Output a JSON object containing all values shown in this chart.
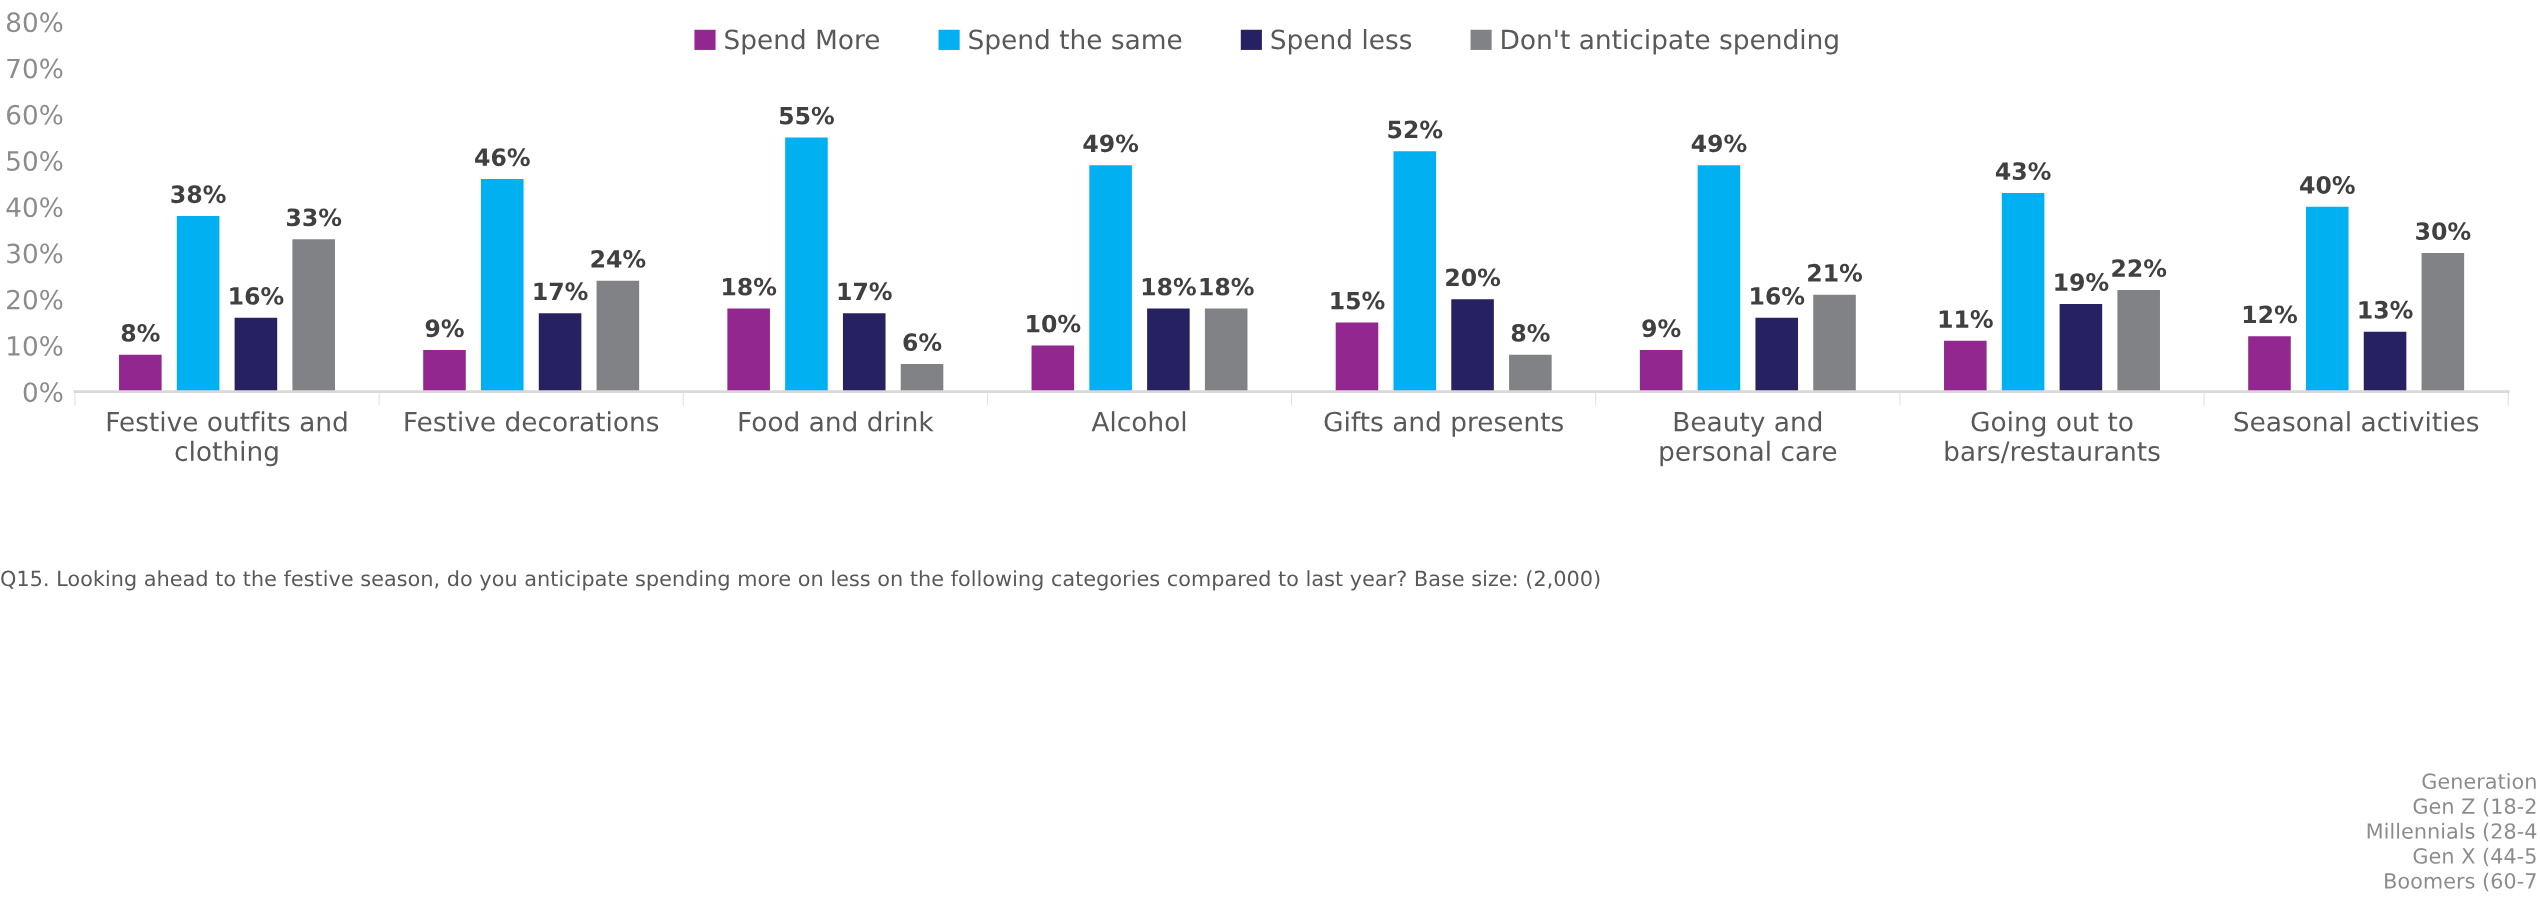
{
  "chart_data": {
    "type": "bar",
    "categories": [
      "Festive outfits and\nclothing",
      "Festive decorations",
      "Food and drink",
      "Alcohol",
      "Gifts and presents",
      "Beauty and\npersonal care",
      "Going out to\nbars/restaurants",
      "Seasonal activities"
    ],
    "series": [
      {
        "name": "Spend More",
        "color": "#92278f",
        "values": [
          8,
          9,
          18,
          10,
          15,
          9,
          11,
          12
        ],
        "value_labels": [
          "8%",
          "9%",
          "18%",
          "10%",
          "15%",
          "9%",
          "11%",
          "12%"
        ]
      },
      {
        "name": "Spend the same",
        "color": "#00b0f0",
        "values": [
          38,
          46,
          55,
          49,
          52,
          49,
          43,
          40
        ],
        "value_labels": [
          "38%",
          "46%",
          "55%",
          "49%",
          "52%",
          "49%",
          "43%",
          "40%"
        ]
      },
      {
        "name": "Spend less",
        "color": "#262262",
        "values": [
          16,
          17,
          17,
          18,
          20,
          16,
          19,
          13
        ],
        "value_labels": [
          "16%",
          "17%",
          "17%",
          "18%",
          "20%",
          "16%",
          "19%",
          "13%"
        ]
      },
      {
        "name": "Don't anticipate spending",
        "color": "#808285",
        "values": [
          33,
          24,
          6,
          18,
          8,
          21,
          22,
          30
        ],
        "value_labels": [
          "33%",
          "24%",
          "6%",
          "18%",
          "8%",
          "21%",
          "22%",
          "30%"
        ]
      }
    ],
    "ylim": [
      0,
      80
    ],
    "yticks": [
      {
        "value": 0,
        "label": "0%"
      },
      {
        "value": 10,
        "label": "10%"
      },
      {
        "value": 20,
        "label": "20%"
      },
      {
        "value": 30,
        "label": "30%"
      },
      {
        "value": 40,
        "label": "40%"
      },
      {
        "value": 50,
        "label": "50%"
      },
      {
        "value": 60,
        "label": "60%"
      },
      {
        "value": 70,
        "label": "70%"
      },
      {
        "value": 80,
        "label": "80%"
      }
    ],
    "legend": "top",
    "annotations": [
      "Q15. Looking ahead to the festive season, do you anticipate spending more on less on the following categories compared to last year? Base size: (2,000)",
      "Generation\nGen Z (18-2\nMillennials (28-4\nGen X (44-5\nBoomers (60-7"
    ]
  }
}
